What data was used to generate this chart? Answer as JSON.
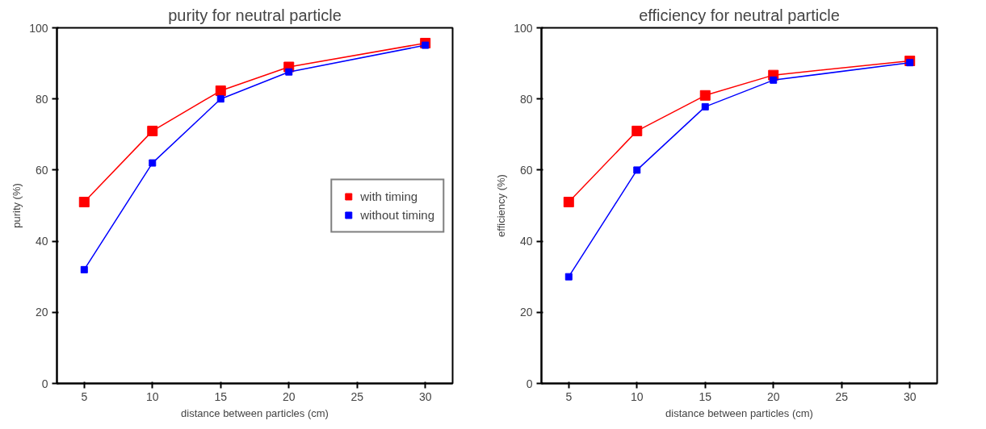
{
  "chart_data": [
    {
      "type": "line",
      "title": "purity for neutral particle",
      "xlabel": "distance between particles (cm)",
      "ylabel": "purity (%)",
      "x": [
        5,
        10,
        15,
        20,
        30
      ],
      "xlim": [
        3,
        32
      ],
      "xticks": [
        5,
        10,
        15,
        20,
        25,
        30
      ],
      "ylim": [
        0,
        100
      ],
      "yticks": [
        0,
        20,
        40,
        60,
        80,
        100
      ],
      "marker": "square",
      "legend": "right",
      "grid": false,
      "series": [
        {
          "name": "with timing",
          "color": "#ff0000",
          "values": [
            51,
            71,
            82.3,
            89,
            95.7
          ]
        },
        {
          "name": "without timing",
          "color": "#0000ff",
          "values": [
            32,
            62,
            80,
            87.6,
            95.1
          ]
        }
      ]
    },
    {
      "type": "line",
      "title": "efficiency for neutral particle",
      "xlabel": "distance between particles (cm)",
      "ylabel": "efficiency (%)",
      "x": [
        5,
        10,
        15,
        20,
        30
      ],
      "xlim": [
        3,
        32
      ],
      "xticks": [
        5,
        10,
        15,
        20,
        25,
        30
      ],
      "ylim": [
        0,
        100
      ],
      "yticks": [
        0,
        20,
        40,
        60,
        80,
        100
      ],
      "marker": "square",
      "legend": false,
      "grid": false,
      "series": [
        {
          "color": "#ff0000",
          "values": [
            51,
            71,
            81,
            86.7,
            90.7
          ]
        },
        {
          "color": "#0000ff",
          "values": [
            30,
            60,
            77.8,
            85.3,
            90.2
          ]
        }
      ]
    }
  ]
}
